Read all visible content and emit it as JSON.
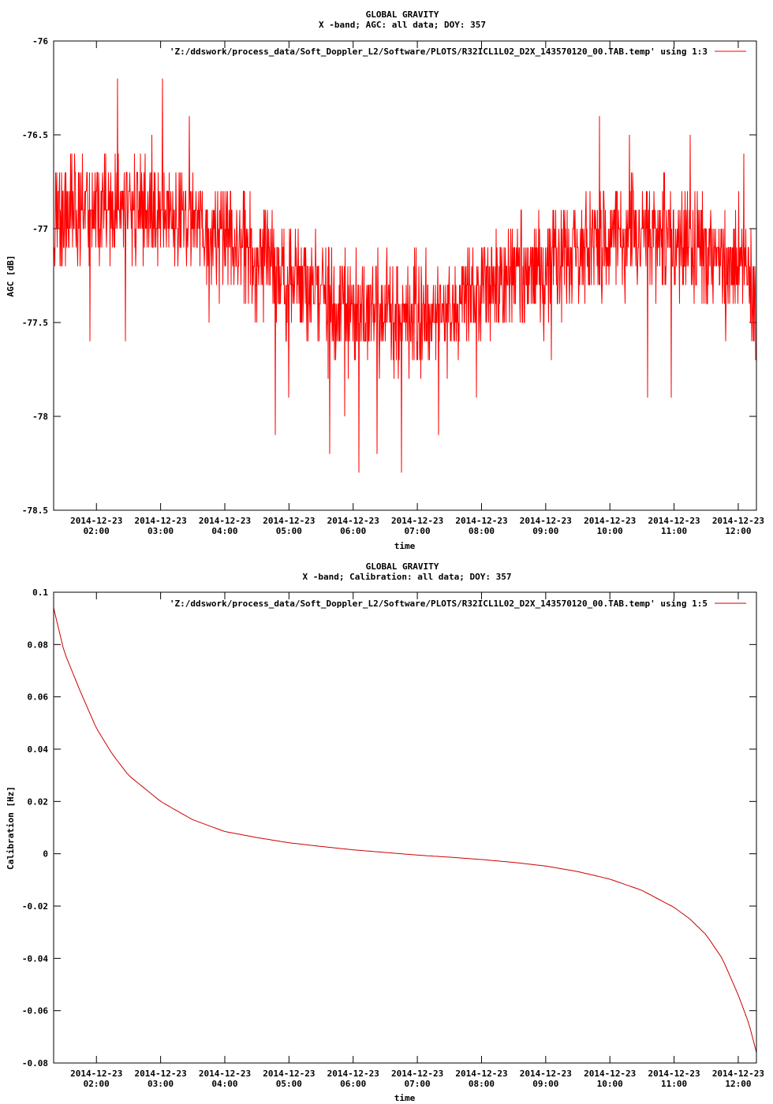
{
  "colors": {
    "series": "#ff0000",
    "series_dark": "#cc0000",
    "axis": "#000000",
    "background": "#ffffff"
  },
  "chart_data": [
    {
      "type": "line",
      "title": "GLOBAL GRAVITY",
      "subtitle": "X -band; AGC: all data; DOY: 357",
      "xlabel": "time",
      "ylabel": "AGC [dB]",
      "ylim": [
        -78.5,
        -76
      ],
      "yticks": [
        -76,
        -76.5,
        -77,
        -77.5,
        -78,
        -78.5
      ],
      "ytick_labels": [
        "-76",
        "-76.5",
        "-77",
        "-77.5",
        "-78",
        "-78.5"
      ],
      "xlim": [
        "2014-12-23 01:20",
        "2014-12-23 12:17"
      ],
      "xticks": [
        "2014-12-23 02:00",
        "2014-12-23 03:00",
        "2014-12-23 04:00",
        "2014-12-23 05:00",
        "2014-12-23 06:00",
        "2014-12-23 07:00",
        "2014-12-23 08:00",
        "2014-12-23 09:00",
        "2014-12-23 10:00",
        "2014-12-23 11:00",
        "2014-12-23 12:00"
      ],
      "xtick_date": "2014-12-23",
      "xtick_labels": [
        "02:00",
        "03:00",
        "04:00",
        "05:00",
        "06:00",
        "07:00",
        "08:00",
        "09:00",
        "10:00",
        "11:00",
        "12:00"
      ],
      "legend": {
        "label": "'Z:/ddswork/process_data/Soft_Doppler_L2/Software/PLOTS/R32ICL1L02_D2X_143570120_00.TAB.temp' using 1:3",
        "position": "top-right"
      },
      "series": [
        {
          "style": "noisy",
          "quantization": 0.1,
          "x": [
            "01:20",
            "02:00",
            "03:00",
            "04:00",
            "05:00",
            "06:00",
            "07:00",
            "08:00",
            "09:00",
            "10:00",
            "11:00",
            "12:00",
            "12:17"
          ],
          "y": [
            -76.95,
            -76.9,
            -76.9,
            -77.05,
            -77.25,
            -77.45,
            -77.45,
            -77.35,
            -77.2,
            -77.05,
            -77.05,
            -77.2,
            -77.3
          ],
          "spread": 0.45,
          "extremes": [
            {
              "x": "01:54",
              "y": -77.6
            },
            {
              "x": "02:20",
              "y": -76.2
            },
            {
              "x": "02:27",
              "y": -77.6
            },
            {
              "x": "03:02",
              "y": -76.2
            },
            {
              "x": "03:27",
              "y": -76.4
            },
            {
              "x": "03:45",
              "y": -77.5
            },
            {
              "x": "05:00",
              "y": -77.9
            },
            {
              "x": "04:47",
              "y": -78.1
            },
            {
              "x": "05:38",
              "y": -78.2
            },
            {
              "x": "05:52",
              "y": -78.0
            },
            {
              "x": "06:05",
              "y": -78.3
            },
            {
              "x": "06:22",
              "y": -78.2
            },
            {
              "x": "06:45",
              "y": -78.3
            },
            {
              "x": "07:20",
              "y": -78.1
            },
            {
              "x": "07:55",
              "y": -77.9
            },
            {
              "x": "09:05",
              "y": -77.7
            },
            {
              "x": "09:50",
              "y": -76.4
            },
            {
              "x": "10:18",
              "y": -76.5
            },
            {
              "x": "10:35",
              "y": -77.9
            },
            {
              "x": "10:57",
              "y": -77.9
            },
            {
              "x": "11:15",
              "y": -76.5
            },
            {
              "x": "11:48",
              "y": -77.6
            },
            {
              "x": "12:05",
              "y": -76.6
            },
            {
              "x": "12:15",
              "y": -77.6
            }
          ]
        }
      ]
    },
    {
      "type": "line",
      "title": "GLOBAL GRAVITY",
      "subtitle": "X -band; Calibration: all data; DOY: 357",
      "xlabel": "time",
      "ylabel": "Calibration [Hz]",
      "ylim": [
        -0.08,
        0.1
      ],
      "yticks": [
        0.1,
        0.08,
        0.06,
        0.04,
        0.02,
        0,
        -0.02,
        -0.04,
        -0.06,
        -0.08
      ],
      "ytick_labels": [
        "0.1",
        "0.08",
        "0.06",
        "0.04",
        "0.02",
        "0",
        "-0.02",
        "-0.04",
        "-0.06",
        "-0.08"
      ],
      "xlim": [
        "2014-12-23 01:20",
        "2014-12-23 12:17"
      ],
      "xticks": [
        "2014-12-23 02:00",
        "2014-12-23 03:00",
        "2014-12-23 04:00",
        "2014-12-23 05:00",
        "2014-12-23 06:00",
        "2014-12-23 07:00",
        "2014-12-23 08:00",
        "2014-12-23 09:00",
        "2014-12-23 10:00",
        "2014-12-23 11:00",
        "2014-12-23 12:00"
      ],
      "xtick_date": "2014-12-23",
      "xtick_labels": [
        "02:00",
        "03:00",
        "04:00",
        "05:00",
        "06:00",
        "07:00",
        "08:00",
        "09:00",
        "10:00",
        "11:00",
        "12:00"
      ],
      "legend": {
        "label": "'Z:/ddswork/process_data/Soft_Doppler_L2/Software/PLOTS/R32ICL1L02_D2X_143570120_00.TAB.temp' using 1:5",
        "position": "top-right"
      },
      "series": [
        {
          "style": "smooth",
          "x": [
            "01:20",
            "01:30",
            "01:45",
            "02:00",
            "02:15",
            "02:30",
            "03:00",
            "03:30",
            "04:00",
            "04:30",
            "05:00",
            "05:30",
            "06:00",
            "06:30",
            "07:00",
            "07:30",
            "08:00",
            "08:30",
            "09:00",
            "09:30",
            "10:00",
            "10:30",
            "11:00",
            "11:15",
            "11:30",
            "11:45",
            "12:00",
            "12:10",
            "12:17"
          ],
          "y": [
            0.094,
            0.077,
            0.062,
            0.048,
            0.038,
            0.03,
            0.02,
            0.013,
            0.0085,
            0.0062,
            0.0042,
            0.0028,
            0.0015,
            0.0005,
            -0.0005,
            -0.0013,
            -0.0022,
            -0.0033,
            -0.0047,
            -0.0068,
            -0.0097,
            -0.014,
            -0.0205,
            -0.025,
            -0.031,
            -0.04,
            -0.054,
            -0.065,
            -0.076
          ]
        }
      ]
    }
  ]
}
